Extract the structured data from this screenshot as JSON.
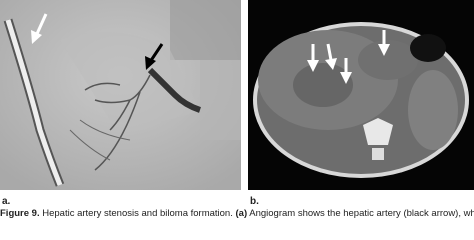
{
  "figure": {
    "panels": [
      {
        "label": "a."
      },
      {
        "label": "b."
      }
    ],
    "caption": {
      "number": "Figure 9.",
      "text": "Hepatic artery stenosis and biloma formation.",
      "panel_ref": "(a)",
      "continuation": "Angiogram shows the hepatic artery (black arrow), which"
    }
  }
}
